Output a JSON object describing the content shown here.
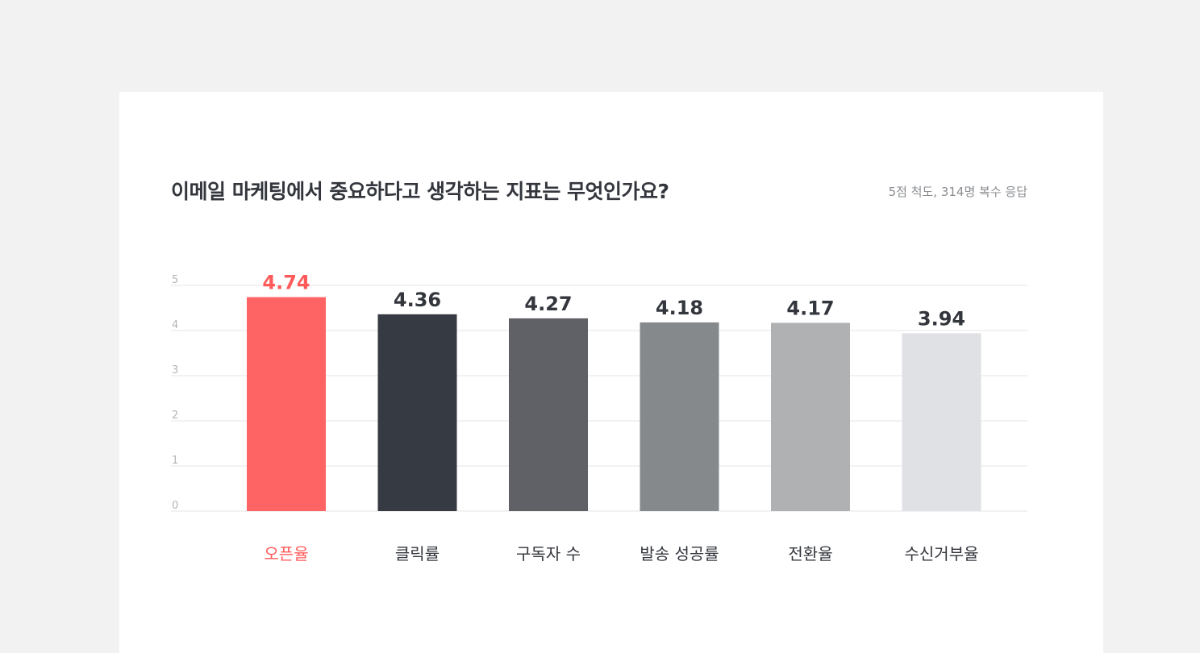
{
  "chart_data": {
    "type": "bar",
    "title": "이메일 마케팅에서 중요하다고 생각하는 지표는 무엇인가요?",
    "subtitle": "5점 척도, 314명 복수 응답",
    "categories": [
      "오픈율",
      "클릭률",
      "구독자 수",
      "발송 성공률",
      "전환율",
      "수신거부율"
    ],
    "values": [
      4.74,
      4.36,
      4.27,
      4.18,
      4.17,
      3.94
    ],
    "value_labels": [
      "4.74",
      "4.36",
      "4.27",
      "4.18",
      "4.17",
      "3.94"
    ],
    "colors": [
      "#ff6464",
      "#363a42",
      "#5f6166",
      "#86898c",
      "#b0b1b3",
      "#e0e1e4"
    ],
    "highlight_color": "#ff5a5a",
    "label_color": "#33363c",
    "y_ticks": [
      "0",
      "1",
      "2",
      "3",
      "4",
      "5"
    ],
    "ylim": [
      0,
      5
    ],
    "grid": true,
    "legend": "none"
  }
}
